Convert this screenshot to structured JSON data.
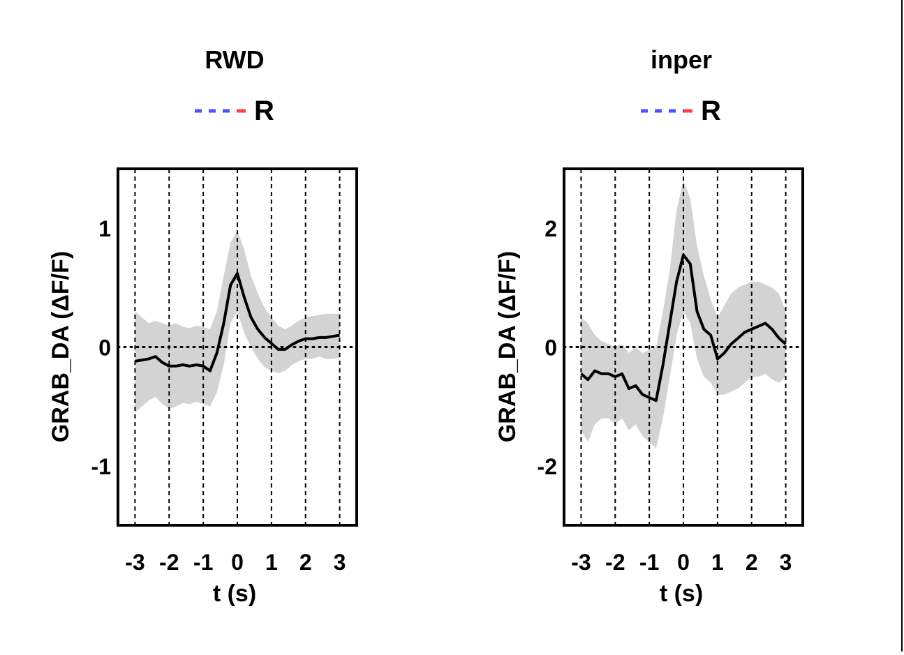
{
  "colors": {
    "mean_line": "#000000",
    "error_band": "#d3d3d3",
    "legend_blue": "#5050ff",
    "legend_red": "#ff4040"
  },
  "chart_data": [
    {
      "type": "line",
      "title": "RWD",
      "legend": {
        "dash_label": "- - -",
        "label": "R"
      },
      "xlabel": "t (s)",
      "ylabel": "GRAB_DA (ΔF/F)",
      "xlim": [
        -3.5,
        3.5
      ],
      "ylim": [
        -1.5,
        1.5
      ],
      "xticks": [
        -3,
        -2,
        -1,
        0,
        1,
        2,
        3
      ],
      "xtick_labels": [
        "-3",
        "-2",
        "-1",
        "0",
        "1",
        "2",
        "3"
      ],
      "yticks": [
        1,
        0,
        -1
      ],
      "ytick_labels": [
        "1",
        "0",
        "-1"
      ],
      "vertical_gridlines": [
        -3,
        -2,
        -1,
        0,
        1,
        2,
        3
      ],
      "zero_line": true,
      "series": [
        {
          "x": [
            -3,
            -2.8,
            -2.6,
            -2.4,
            -2.2,
            -2,
            -1.8,
            -1.6,
            -1.4,
            -1.2,
            -1,
            -0.8,
            -0.6,
            -0.4,
            -0.2,
            0,
            0.2,
            0.4,
            0.6,
            0.8,
            1,
            1.2,
            1.4,
            1.6,
            1.8,
            2,
            2.2,
            2.4,
            2.6,
            2.8,
            3
          ],
          "y": [
            -0.12,
            -0.11,
            -0.1,
            -0.08,
            -0.13,
            -0.16,
            -0.16,
            -0.15,
            -0.16,
            -0.15,
            -0.16,
            -0.2,
            -0.05,
            0.2,
            0.52,
            0.62,
            0.42,
            0.25,
            0.15,
            0.08,
            0.03,
            -0.02,
            -0.02,
            0.02,
            0.05,
            0.07,
            0.07,
            0.08,
            0.08,
            0.09,
            0.1
          ],
          "upper": [
            0.3,
            0.25,
            0.2,
            0.22,
            0.2,
            0.18,
            0.2,
            0.17,
            0.16,
            0.18,
            0.17,
            0.15,
            0.3,
            0.6,
            0.88,
            0.98,
            0.82,
            0.6,
            0.45,
            0.33,
            0.25,
            0.18,
            0.15,
            0.18,
            0.22,
            0.25,
            0.26,
            0.27,
            0.28,
            0.28,
            0.28
          ],
          "lower": [
            -0.55,
            -0.5,
            -0.45,
            -0.42,
            -0.48,
            -0.52,
            -0.5,
            -0.47,
            -0.48,
            -0.46,
            -0.48,
            -0.5,
            -0.38,
            -0.15,
            0.2,
            0.3,
            0.12,
            0.0,
            -0.1,
            -0.17,
            -0.2,
            -0.22,
            -0.2,
            -0.15,
            -0.12,
            -0.1,
            -0.1,
            -0.08,
            -0.1,
            -0.1,
            -0.09
          ]
        }
      ]
    },
    {
      "type": "line",
      "title": "inper",
      "legend": {
        "dash_label": "- - -",
        "label": "R"
      },
      "xlabel": "t (s)",
      "ylabel": "GRAB_DA (ΔF/F)",
      "xlim": [
        -3.5,
        3.5
      ],
      "ylim": [
        -3,
        3
      ],
      "xticks": [
        -3,
        -2,
        -1,
        0,
        1,
        2,
        3
      ],
      "xtick_labels": [
        "-3",
        "-2",
        "-1",
        "0",
        "1",
        "2",
        "3"
      ],
      "yticks": [
        2,
        0,
        -2
      ],
      "ytick_labels": [
        "2",
        "0",
        "-2"
      ],
      "vertical_gridlines": [
        -3,
        -2,
        -1,
        0,
        1,
        2,
        3
      ],
      "zero_line": true,
      "series": [
        {
          "x": [
            -3,
            -2.8,
            -2.6,
            -2.4,
            -2.2,
            -2,
            -1.8,
            -1.6,
            -1.4,
            -1.2,
            -1,
            -0.8,
            -0.6,
            -0.4,
            -0.2,
            0,
            0.2,
            0.4,
            0.6,
            0.8,
            1,
            1.2,
            1.4,
            1.6,
            1.8,
            2,
            2.2,
            2.4,
            2.6,
            2.8,
            3
          ],
          "y": [
            -0.45,
            -0.55,
            -0.4,
            -0.45,
            -0.45,
            -0.5,
            -0.45,
            -0.7,
            -0.65,
            -0.8,
            -0.85,
            -0.9,
            -0.3,
            0.4,
            1.1,
            1.55,
            1.4,
            0.6,
            0.3,
            0.2,
            -0.2,
            -0.1,
            0.05,
            0.15,
            0.25,
            0.3,
            0.35,
            0.4,
            0.3,
            0.15,
            0.05
          ],
          "upper": [
            0.5,
            0.4,
            0.2,
            0.1,
            0.05,
            0.0,
            0.05,
            -0.1,
            0.0,
            -0.1,
            -0.05,
            0.0,
            0.6,
            1.3,
            2.3,
            2.8,
            2.5,
            1.7,
            1.2,
            0.8,
            0.5,
            0.7,
            0.9,
            1.0,
            1.05,
            1.1,
            1.1,
            1.05,
            1.0,
            0.9,
            0.6
          ],
          "lower": [
            -1.4,
            -1.6,
            -1.3,
            -1.2,
            -1.2,
            -1.3,
            -1.2,
            -1.4,
            -1.3,
            -1.5,
            -1.6,
            -1.7,
            -1.2,
            -0.5,
            0.2,
            0.6,
            0.4,
            -0.2,
            -0.5,
            -0.6,
            -0.8,
            -0.8,
            -0.75,
            -0.7,
            -0.6,
            -0.5,
            -0.5,
            -0.45,
            -0.55,
            -0.6,
            -0.5
          ]
        }
      ]
    }
  ]
}
